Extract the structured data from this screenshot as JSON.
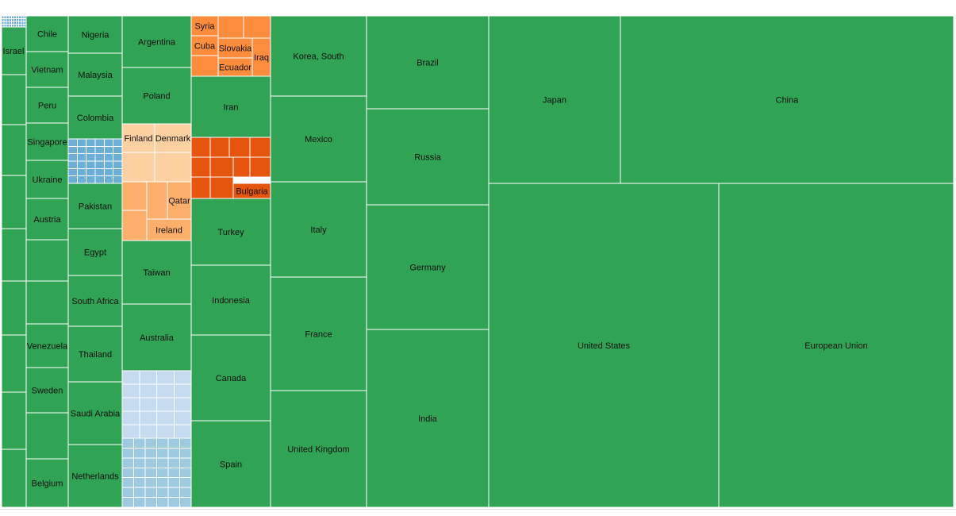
{
  "chart_data": {
    "type": "treemap",
    "colors": {
      "green": "#31a354",
      "orange_dark": "#e6550d",
      "orange_mid": "#fd8d3c",
      "orange_light": "#fdae6b",
      "peach": "#fdd0a2",
      "blue": "#6baed6",
      "blue_light": "#c6dbef",
      "blue_mid": "#9ecae1"
    },
    "labels": [
      "Israel",
      "Chile",
      "Vietnam",
      "Peru",
      "Singapore",
      "Ukraine",
      "Austria",
      "Venezuela",
      "Sweden",
      "Belgium",
      "Nigeria",
      "Malaysia",
      "Colombia",
      "Pakistan",
      "Egypt",
      "South Africa",
      "Thailand",
      "Saudi Arabia",
      "Netherlands",
      "Argentina",
      "Poland",
      "Finland",
      "Denmark",
      "Qatar",
      "Ireland",
      "Taiwan",
      "Australia",
      "Syria",
      "Cuba",
      "Slovakia",
      "Iraq",
      "Ecuador",
      "Iran",
      "Bulgaria",
      "Turkey",
      "Indonesia",
      "Canada",
      "Spain",
      "Korea, South",
      "Mexico",
      "Italy",
      "France",
      "United Kingdom",
      "Brazil",
      "Russia",
      "Germany",
      "India",
      "Japan",
      "China",
      "United States",
      "European Union"
    ]
  }
}
